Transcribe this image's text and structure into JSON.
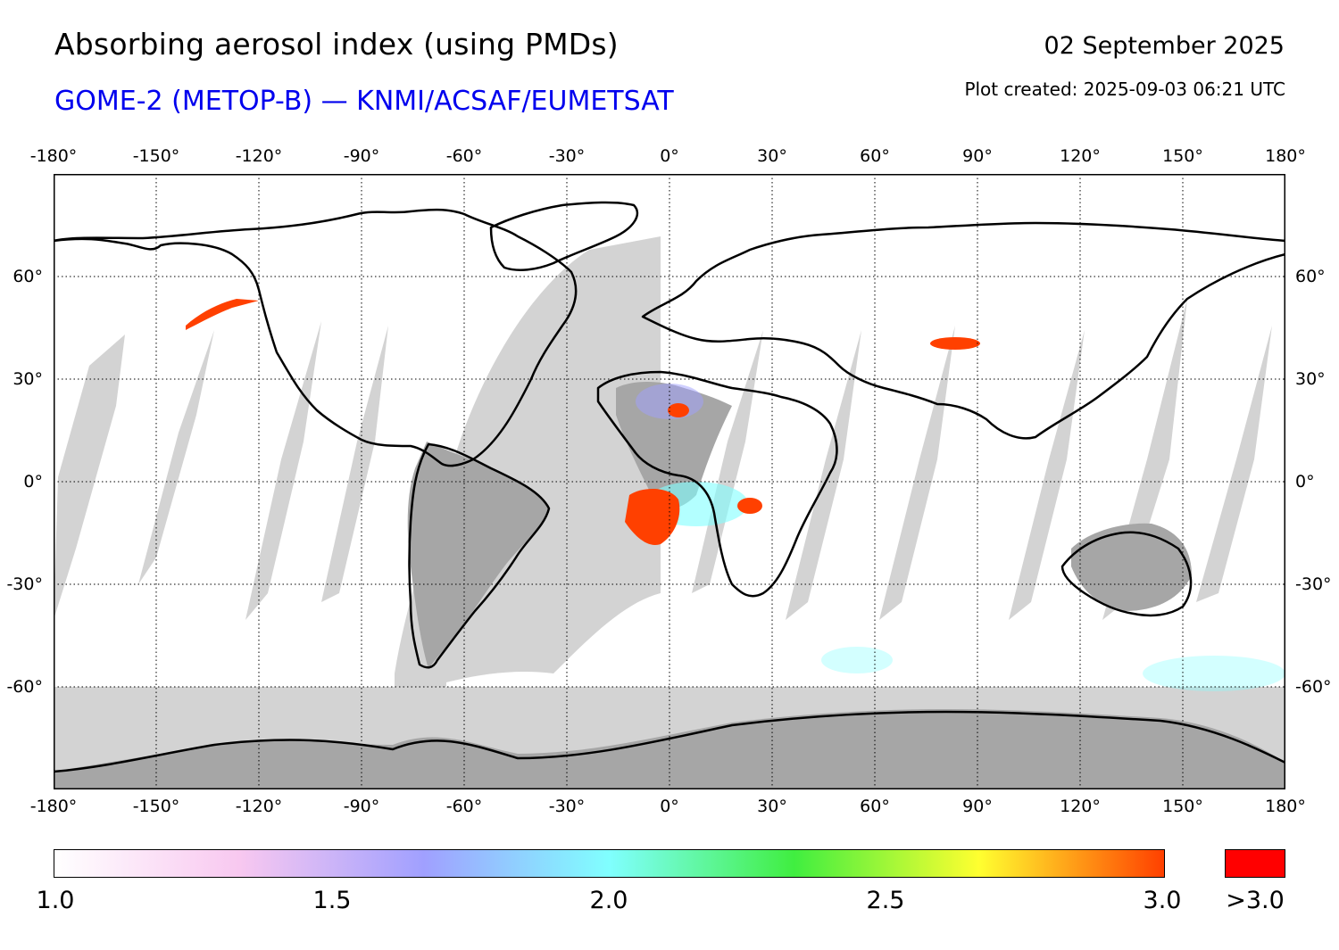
{
  "header": {
    "title": "Absorbing aerosol index (using PMDs)",
    "subtitle": "GOME-2 (METOP-B) — KNMI/ACSAF/EUMETSAT",
    "date": "02 September 2025",
    "created": "Plot created: 2025-09-03 06:21 UTC"
  },
  "map": {
    "projection": "equirectangular",
    "lon_range": [
      -180,
      180
    ],
    "lat_range": [
      -90,
      90
    ],
    "grid": true,
    "lon_ticks": [
      "-180°",
      "-150°",
      "-120°",
      "-90°",
      "-60°",
      "-30°",
      "0°",
      "30°",
      "60°",
      "90°",
      "120°",
      "150°",
      "180°"
    ],
    "lat_ticks": [
      "60°",
      "30°",
      "0°",
      "-30°",
      "-60°"
    ],
    "colors": {
      "no_data_land": "#a6a6a6",
      "no_data_sea": "#d3d3d3",
      "coastline": "#000000",
      "grid": "#000000"
    }
  },
  "colorbar": {
    "labels": [
      "1.0",
      "1.5",
      "2.0",
      "2.5",
      "3.0"
    ],
    "over_label": ">3.0",
    "over_color": "#ff0000",
    "range": [
      1.0,
      3.0
    ],
    "stops": [
      "#ffffff",
      "#f8c8f0",
      "#a0a0ff",
      "#80ffff",
      "#40ee40",
      "#ffff30",
      "#ff4000"
    ]
  }
}
